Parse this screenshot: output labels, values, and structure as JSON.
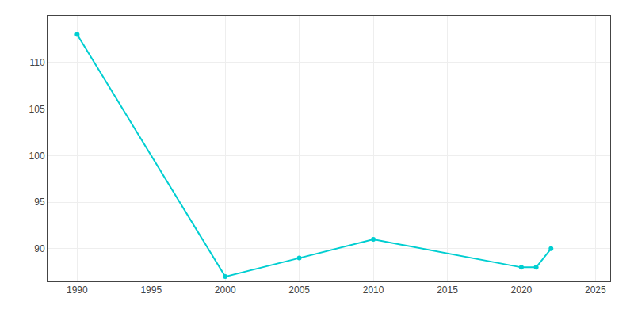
{
  "chart_data": {
    "type": "line",
    "x": [
      1990,
      2000,
      2005,
      2010,
      2020,
      2021,
      2022
    ],
    "values": [
      113,
      87,
      89,
      91,
      88,
      88,
      90
    ],
    "color": "#00CED1",
    "marker": "circle",
    "xlim": [
      1988,
      2026
    ],
    "ylim": [
      86.5,
      115
    ],
    "xticks": [
      1990,
      1995,
      2000,
      2005,
      2010,
      2015,
      2020,
      2025
    ],
    "yticks": [
      90,
      95,
      100,
      105,
      110
    ],
    "grid": true
  }
}
